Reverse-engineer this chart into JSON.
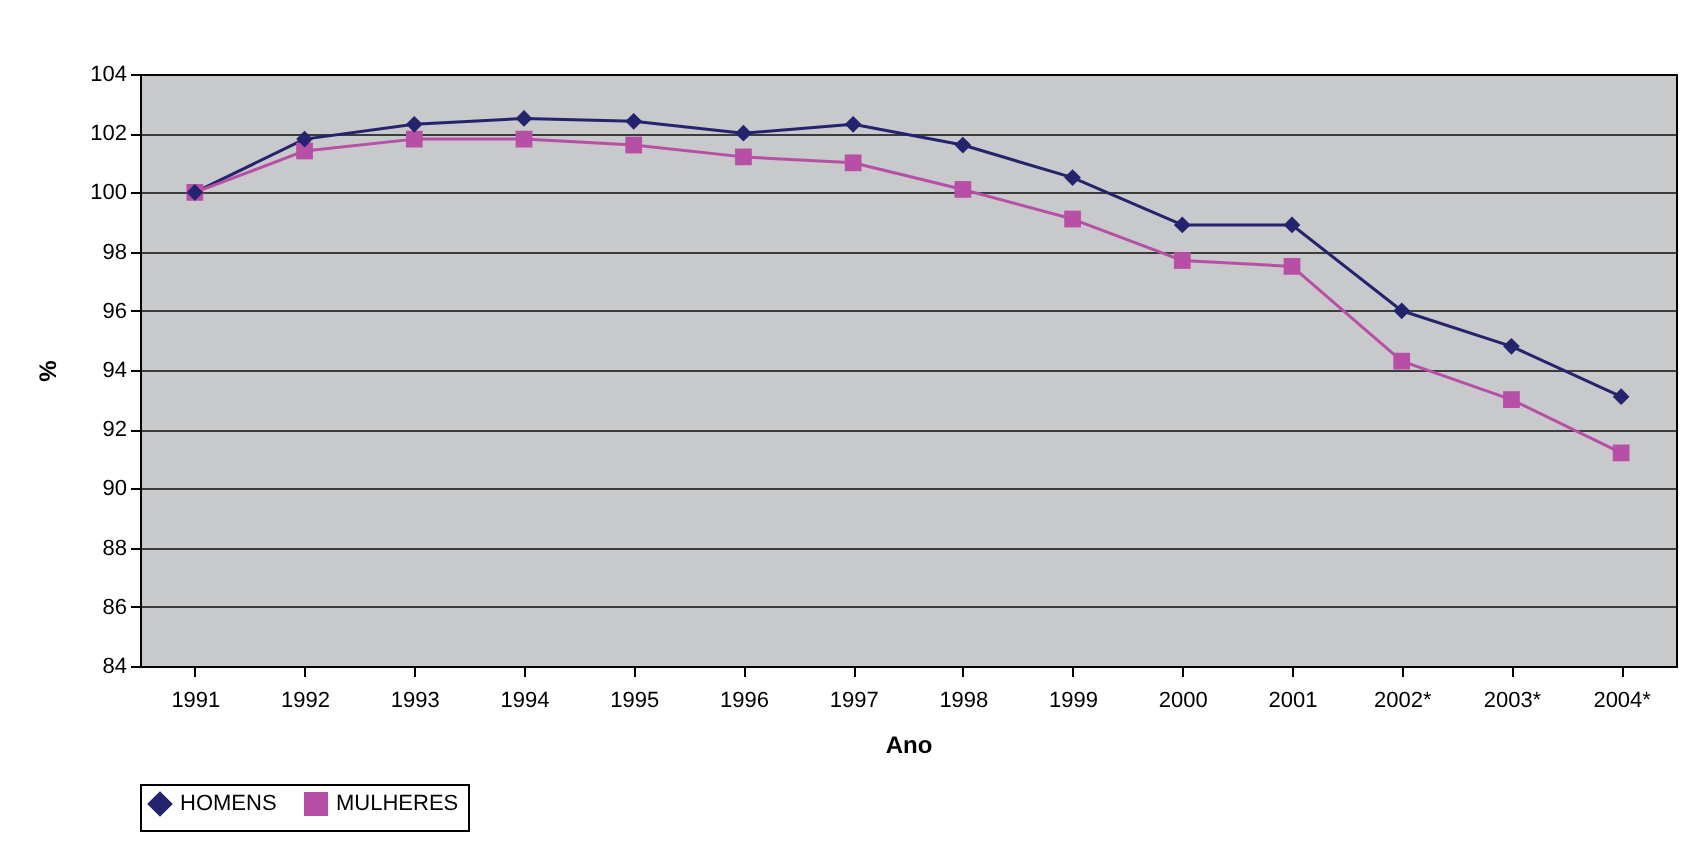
{
  "chart_data": {
    "type": "line",
    "xlabel": "Ano",
    "ylabel": "%",
    "categories": [
      "1991",
      "1992",
      "1993",
      "1994",
      "1995",
      "1996",
      "1997",
      "1998",
      "1999",
      "2000",
      "2001",
      "2002*",
      "2003*",
      "2004*"
    ],
    "series": [
      {
        "name": "HOMENS",
        "color": "#23236e",
        "marker": "diamond",
        "values": [
          100,
          101.8,
          102.3,
          102.5,
          102.4,
          102.0,
          102.3,
          101.6,
          100.5,
          98.9,
          98.9,
          96.0,
          94.8,
          93.1
        ]
      },
      {
        "name": "MULHERES",
        "color": "#b84fa6",
        "marker": "square",
        "values": [
          100,
          101.4,
          101.8,
          101.8,
          101.6,
          101.2,
          101.0,
          100.1,
          99.1,
          97.7,
          97.5,
          94.3,
          93.0,
          91.2
        ]
      }
    ],
    "ylim": [
      84,
      104
    ],
    "yticks": [
      84,
      86,
      88,
      90,
      92,
      94,
      96,
      98,
      100,
      102,
      104
    ],
    "grid": "y",
    "legend": "bottom",
    "line_style": "solid"
  }
}
